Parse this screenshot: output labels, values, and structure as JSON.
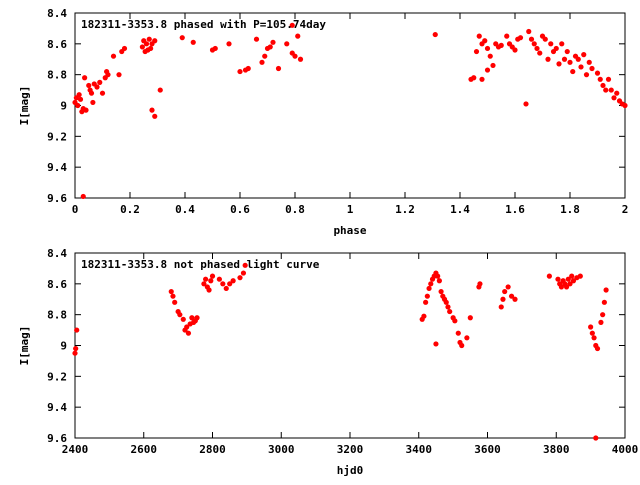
{
  "chart_data": [
    {
      "type": "scatter",
      "title": "182311-3353.8 phased with P=105.74day",
      "xlabel": "phase",
      "ylabel": "I[mag]",
      "xlim": [
        0,
        2
      ],
      "ylim": [
        8.4,
        9.6
      ],
      "y_inverted": true,
      "grid": false,
      "xticks": [
        "0",
        "0.2",
        "0.4",
        "0.6",
        "0.8",
        "1",
        "1.2",
        "1.4",
        "1.6",
        "1.8",
        "2"
      ],
      "yticks": [
        "8.4",
        "8.6",
        "8.8",
        "9",
        "9.2",
        "9.4",
        "9.6"
      ],
      "series": [
        {
          "color": "#ff0000",
          "points": [
            [
              0.0,
              8.98
            ],
            [
              0.005,
              8.95
            ],
            [
              0.01,
              9.0
            ],
            [
              0.015,
              8.93
            ],
            [
              0.02,
              8.96
            ],
            [
              0.025,
              9.04
            ],
            [
              0.03,
              9.02
            ],
            [
              0.03,
              9.59
            ],
            [
              0.035,
              8.82
            ],
            [
              0.04,
              9.03
            ],
            [
              0.05,
              8.87
            ],
            [
              0.055,
              8.9
            ],
            [
              0.06,
              8.92
            ],
            [
              0.065,
              8.98
            ],
            [
              0.07,
              8.86
            ],
            [
              0.08,
              8.88
            ],
            [
              0.09,
              8.85
            ],
            [
              0.1,
              8.92
            ],
            [
              0.11,
              8.82
            ],
            [
              0.115,
              8.78
            ],
            [
              0.12,
              8.8
            ],
            [
              0.14,
              8.68
            ],
            [
              0.16,
              8.8
            ],
            [
              0.17,
              8.65
            ],
            [
              0.18,
              8.63
            ],
            [
              0.245,
              8.62
            ],
            [
              0.25,
              8.58
            ],
            [
              0.255,
              8.65
            ],
            [
              0.26,
              8.6
            ],
            [
              0.265,
              8.64
            ],
            [
              0.27,
              8.57
            ],
            [
              0.275,
              8.63
            ],
            [
              0.28,
              9.03
            ],
            [
              0.29,
              9.07
            ],
            [
              0.28,
              8.6
            ],
            [
              0.29,
              8.58
            ],
            [
              0.31,
              8.9
            ],
            [
              0.39,
              8.56
            ],
            [
              0.43,
              8.59
            ],
            [
              0.5,
              8.64
            ],
            [
              0.51,
              8.63
            ],
            [
              0.56,
              8.6
            ],
            [
              0.6,
              8.78
            ],
            [
              0.62,
              8.77
            ],
            [
              0.63,
              8.76
            ],
            [
              0.66,
              8.57
            ],
            [
              0.68,
              8.72
            ],
            [
              0.69,
              8.68
            ],
            [
              0.7,
              8.63
            ],
            [
              0.71,
              8.62
            ],
            [
              0.72,
              8.59
            ],
            [
              0.74,
              8.76
            ],
            [
              0.77,
              8.6
            ],
            [
              0.79,
              8.48
            ],
            [
              0.79,
              8.66
            ],
            [
              0.8,
              8.68
            ],
            [
              0.81,
              8.55
            ],
            [
              0.82,
              8.7
            ],
            [
              1.31,
              8.54
            ],
            [
              1.44,
              8.83
            ],
            [
              1.45,
              8.82
            ],
            [
              1.46,
              8.65
            ],
            [
              1.47,
              8.55
            ],
            [
              1.48,
              8.6
            ],
            [
              1.48,
              8.83
            ],
            [
              1.49,
              8.58
            ],
            [
              1.5,
              8.63
            ],
            [
              1.5,
              8.77
            ],
            [
              1.51,
              8.68
            ],
            [
              1.52,
              8.74
            ],
            [
              1.53,
              8.6
            ],
            [
              1.54,
              8.62
            ],
            [
              1.55,
              8.61
            ],
            [
              1.57,
              8.55
            ],
            [
              1.58,
              8.6
            ],
            [
              1.59,
              8.62
            ],
            [
              1.6,
              8.64
            ],
            [
              1.61,
              8.57
            ],
            [
              1.62,
              8.56
            ],
            [
              1.64,
              8.99
            ],
            [
              1.65,
              8.52
            ],
            [
              1.66,
              8.57
            ],
            [
              1.67,
              8.6
            ],
            [
              1.68,
              8.63
            ],
            [
              1.69,
              8.66
            ],
            [
              1.7,
              8.55
            ],
            [
              1.71,
              8.57
            ],
            [
              1.72,
              8.7
            ],
            [
              1.73,
              8.6
            ],
            [
              1.74,
              8.65
            ],
            [
              1.75,
              8.63
            ],
            [
              1.76,
              8.73
            ],
            [
              1.77,
              8.6
            ],
            [
              1.78,
              8.7
            ],
            [
              1.79,
              8.65
            ],
            [
              1.8,
              8.72
            ],
            [
              1.81,
              8.78
            ],
            [
              1.82,
              8.68
            ],
            [
              1.83,
              8.7
            ],
            [
              1.84,
              8.75
            ],
            [
              1.85,
              8.67
            ],
            [
              1.86,
              8.8
            ],
            [
              1.87,
              8.72
            ],
            [
              1.88,
              8.76
            ],
            [
              1.9,
              8.79
            ],
            [
              1.91,
              8.83
            ],
            [
              1.92,
              8.87
            ],
            [
              1.93,
              8.9
            ],
            [
              1.94,
              8.83
            ],
            [
              1.95,
              8.9
            ],
            [
              1.96,
              8.95
            ],
            [
              1.97,
              8.92
            ],
            [
              1.98,
              8.97
            ],
            [
              1.99,
              8.99
            ],
            [
              2.0,
              9.0
            ]
          ]
        }
      ]
    },
    {
      "type": "scatter",
      "title": "182311-3353.8 not phased light curve",
      "xlabel": "hjd0",
      "ylabel": "I[mag]",
      "xlim": [
        2400,
        4000
      ],
      "ylim": [
        8.4,
        9.6
      ],
      "y_inverted": true,
      "grid": false,
      "xticks": [
        "2400",
        "2600",
        "2800",
        "3000",
        "3200",
        "3400",
        "3600",
        "3800",
        "4000"
      ],
      "yticks": [
        "8.4",
        "8.6",
        "8.8",
        "9",
        "9.2",
        "9.4",
        "9.6"
      ],
      "series": [
        {
          "color": "#ff0000",
          "points": [
            [
              2400,
              9.05
            ],
            [
              2402,
              9.02
            ],
            [
              2405,
              8.9
            ],
            [
              2680,
              8.65
            ],
            [
              2685,
              8.68
            ],
            [
              2690,
              8.72
            ],
            [
              2700,
              8.78
            ],
            [
              2705,
              8.8
            ],
            [
              2715,
              8.83
            ],
            [
              2720,
              8.9
            ],
            [
              2725,
              8.88
            ],
            [
              2730,
              8.92
            ],
            [
              2735,
              8.86
            ],
            [
              2740,
              8.82
            ],
            [
              2745,
              8.85
            ],
            [
              2750,
              8.84
            ],
            [
              2755,
              8.82
            ],
            [
              2775,
              8.6
            ],
            [
              2780,
              8.57
            ],
            [
              2785,
              8.62
            ],
            [
              2790,
              8.64
            ],
            [
              2795,
              8.58
            ],
            [
              2800,
              8.55
            ],
            [
              2820,
              8.57
            ],
            [
              2830,
              8.6
            ],
            [
              2840,
              8.63
            ],
            [
              2850,
              8.6
            ],
            [
              2860,
              8.58
            ],
            [
              2880,
              8.56
            ],
            [
              2890,
              8.53
            ],
            [
              2895,
              8.48
            ],
            [
              3410,
              8.83
            ],
            [
              3415,
              8.81
            ],
            [
              3420,
              8.72
            ],
            [
              3425,
              8.68
            ],
            [
              3430,
              8.63
            ],
            [
              3435,
              8.6
            ],
            [
              3440,
              8.57
            ],
            [
              3445,
              8.55
            ],
            [
              3450,
              8.53
            ],
            [
              3455,
              8.55
            ],
            [
              3460,
              8.58
            ],
            [
              3465,
              8.65
            ],
            [
              3470,
              8.68
            ],
            [
              3475,
              8.7
            ],
            [
              3480,
              8.72
            ],
            [
              3485,
              8.75
            ],
            [
              3490,
              8.78
            ],
            [
              3500,
              8.82
            ],
            [
              3505,
              8.84
            ],
            [
              3515,
              8.92
            ],
            [
              3520,
              8.98
            ],
            [
              3525,
              9.0
            ],
            [
              3540,
              8.95
            ],
            [
              3550,
              8.82
            ],
            [
              3575,
              8.62
            ],
            [
              3578,
              8.6
            ],
            [
              3450,
              8.99
            ],
            [
              3640,
              8.75
            ],
            [
              3645,
              8.7
            ],
            [
              3650,
              8.65
            ],
            [
              3660,
              8.62
            ],
            [
              3670,
              8.68
            ],
            [
              3680,
              8.7
            ],
            [
              3780,
              8.55
            ],
            [
              3805,
              8.57
            ],
            [
              3810,
              8.6
            ],
            [
              3815,
              8.62
            ],
            [
              3820,
              8.58
            ],
            [
              3825,
              8.6
            ],
            [
              3830,
              8.62
            ],
            [
              3835,
              8.57
            ],
            [
              3840,
              8.6
            ],
            [
              3845,
              8.55
            ],
            [
              3850,
              8.58
            ],
            [
              3860,
              8.56
            ],
            [
              3870,
              8.55
            ],
            [
              3900,
              8.88
            ],
            [
              3905,
              8.92
            ],
            [
              3910,
              8.95
            ],
            [
              3915,
              9.0
            ],
            [
              3920,
              9.02
            ],
            [
              3930,
              8.85
            ],
            [
              3935,
              8.8
            ],
            [
              3940,
              8.72
            ],
            [
              3945,
              8.64
            ],
            [
              3915,
              9.6
            ]
          ]
        }
      ]
    }
  ]
}
